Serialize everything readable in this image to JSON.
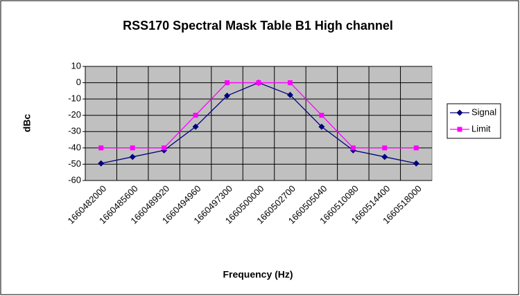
{
  "chart_data": {
    "type": "line",
    "title": "RSS170 Spectral Mask Table B1 High channel",
    "x_label": "Frequency (Hz)",
    "y_label": "dBc",
    "categories": [
      "1660482000",
      "1660485600",
      "1660489920",
      "1660494960",
      "1660497300",
      "1660500000",
      "1660502700",
      "1660505040",
      "1660510080",
      "1660514400",
      "1660518000"
    ],
    "series": [
      {
        "name": "Signal",
        "color": "#000080",
        "marker": "diamond",
        "values": [
          -49.5,
          -45.5,
          -41.5,
          -27,
          -8,
          0,
          -7.5,
          -27,
          -41.5,
          -45.5,
          -49.5
        ]
      },
      {
        "name": "Limit",
        "color": "#ff00ff",
        "marker": "square",
        "values": [
          -40,
          -40,
          -40,
          -20,
          0,
          0,
          0,
          -20,
          -40,
          -40,
          -40
        ]
      }
    ],
    "ylim": [
      -60,
      10
    ],
    "yticks": [
      -60,
      -50,
      -40,
      -30,
      -20,
      -10,
      0,
      10
    ],
    "grid": true,
    "legend": "right",
    "plot_background": "#c0c0c0"
  }
}
